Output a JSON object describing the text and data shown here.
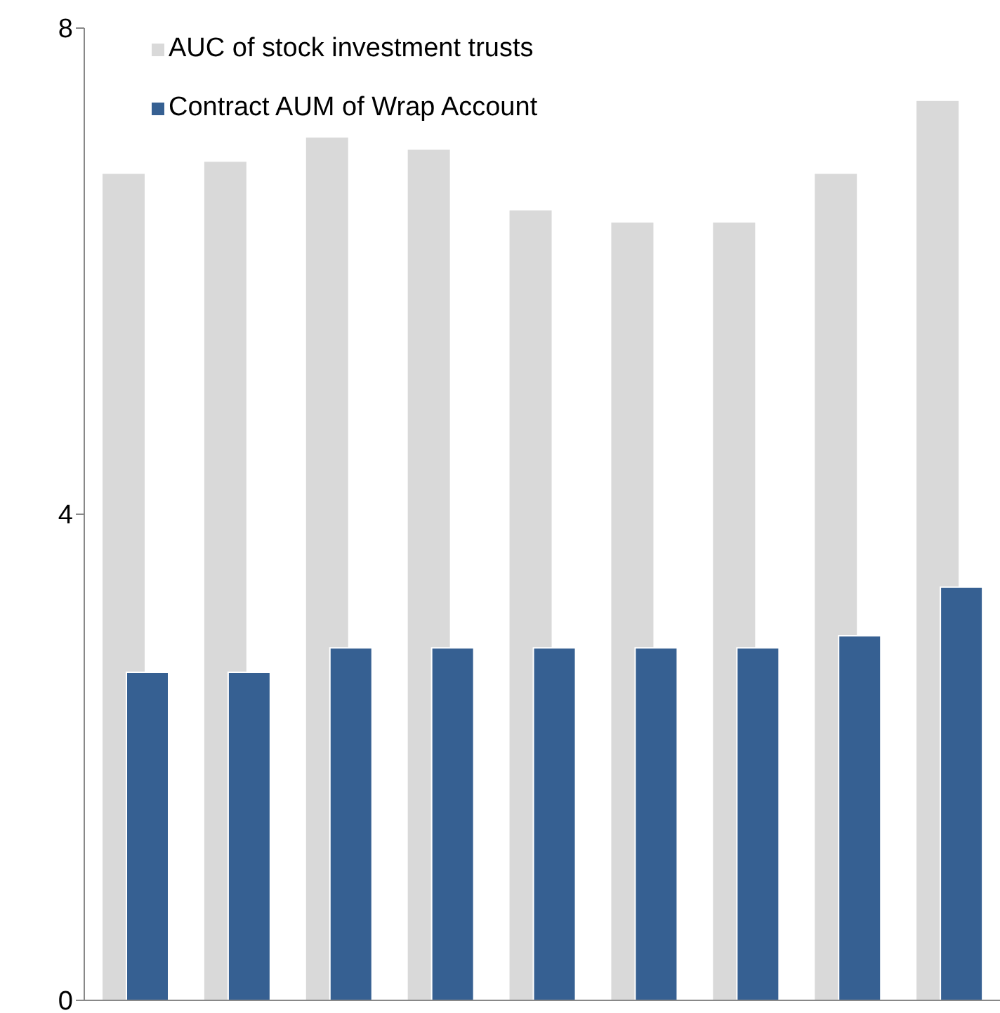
{
  "chart_data": {
    "type": "bar",
    "categories": [
      null,
      null,
      null,
      null,
      null,
      null,
      null,
      null,
      null
    ],
    "series": [
      {
        "name": "AUC of stock investment trusts",
        "color": "#d9d9d9",
        "values": [
          6.8,
          6.9,
          7.1,
          7.0,
          6.5,
          6.4,
          6.4,
          6.8,
          7.4
        ]
      },
      {
        "name": "Contract AUM of Wrap Account",
        "color": "#366092",
        "values": [
          2.7,
          2.7,
          2.9,
          2.9,
          2.9,
          2.9,
          2.9,
          3.0,
          3.4
        ]
      }
    ],
    "ylim": [
      0,
      8
    ],
    "yticks": [
      0,
      4,
      8
    ],
    "grid": false,
    "legend": "top left"
  }
}
